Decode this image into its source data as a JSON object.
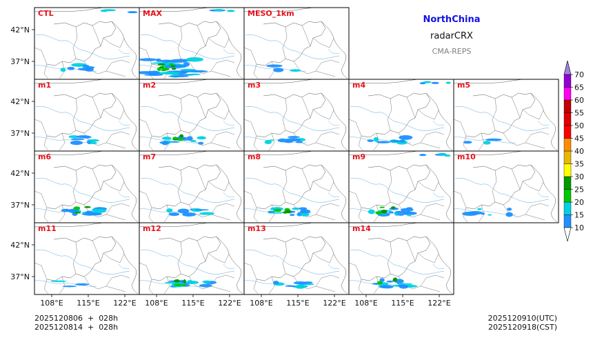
{
  "header": {
    "region": "NorthChina",
    "variable": "radarCRX",
    "model": "CMA-REPS"
  },
  "panels": [
    {
      "label": "CTL",
      "row": 0,
      "col": 0,
      "lat_ticks": true,
      "lon_ticks": false,
      "echo_level": 1
    },
    {
      "label": "MAX",
      "row": 0,
      "col": 1,
      "lat_ticks": false,
      "lon_ticks": false,
      "echo_level": 3
    },
    {
      "label": "MESO_1km",
      "row": 0,
      "col": 2,
      "lat_ticks": false,
      "lon_ticks": false,
      "echo_level": 0
    },
    {
      "label": "m1",
      "row": 1,
      "col": 0,
      "lat_ticks": true,
      "lon_ticks": false,
      "echo_level": 1
    },
    {
      "label": "m2",
      "row": 1,
      "col": 1,
      "lat_ticks": false,
      "lon_ticks": false,
      "echo_level": 2
    },
    {
      "label": "m3",
      "row": 1,
      "col": 2,
      "lat_ticks": false,
      "lon_ticks": false,
      "echo_level": 1
    },
    {
      "label": "m4",
      "row": 1,
      "col": 3,
      "lat_ticks": false,
      "lon_ticks": false,
      "echo_level": 1
    },
    {
      "label": "m5",
      "row": 1,
      "col": 4,
      "lat_ticks": false,
      "lon_ticks": false,
      "echo_level": 0
    },
    {
      "label": "m6",
      "row": 2,
      "col": 0,
      "lat_ticks": true,
      "lon_ticks": false,
      "echo_level": 2
    },
    {
      "label": "m7",
      "row": 2,
      "col": 1,
      "lat_ticks": false,
      "lon_ticks": false,
      "echo_level": 1
    },
    {
      "label": "m8",
      "row": 2,
      "col": 2,
      "lat_ticks": false,
      "lon_ticks": false,
      "echo_level": 2
    },
    {
      "label": "m9",
      "row": 2,
      "col": 3,
      "lat_ticks": false,
      "lon_ticks": false,
      "echo_level": 2
    },
    {
      "label": "m10",
      "row": 2,
      "col": 4,
      "lat_ticks": false,
      "lon_ticks": false,
      "echo_level": 1
    },
    {
      "label": "m11",
      "row": 3,
      "col": 0,
      "lat_ticks": true,
      "lon_ticks": true,
      "echo_level": 0
    },
    {
      "label": "m12",
      "row": 3,
      "col": 1,
      "lat_ticks": false,
      "lon_ticks": true,
      "echo_level": 2
    },
    {
      "label": "m13",
      "row": 3,
      "col": 2,
      "lat_ticks": false,
      "lon_ticks": true,
      "echo_level": 1
    },
    {
      "label": "m14",
      "row": 3,
      "col": 3,
      "lat_ticks": false,
      "lon_ticks": true,
      "echo_level": 2
    }
  ],
  "axes": {
    "lat_ticks": [
      "42°N",
      "37°N"
    ],
    "lon_ticks": [
      "108°E",
      "115°E",
      "122°E"
    ]
  },
  "colorbar": {
    "levels": [
      "10",
      "15",
      "20",
      "25",
      "30",
      "35",
      "40",
      "45",
      "50",
      "55",
      "60",
      "65",
      "70"
    ],
    "colors": [
      "#1e90ff",
      "#00d2e0",
      "#00c800",
      "#009a00",
      "#ffff00",
      "#e6b800",
      "#ff8c00",
      "#ff0000",
      "#e00000",
      "#c00000",
      "#ff00f0",
      "#9400d3",
      "#a080e0"
    ]
  },
  "footer": {
    "init_utc": "2025120806  +  028h",
    "init_cst": "2025120814  +  028h",
    "valid_utc": "2025120910(UTC)",
    "valid_cst": "2025120918(CST)"
  }
}
